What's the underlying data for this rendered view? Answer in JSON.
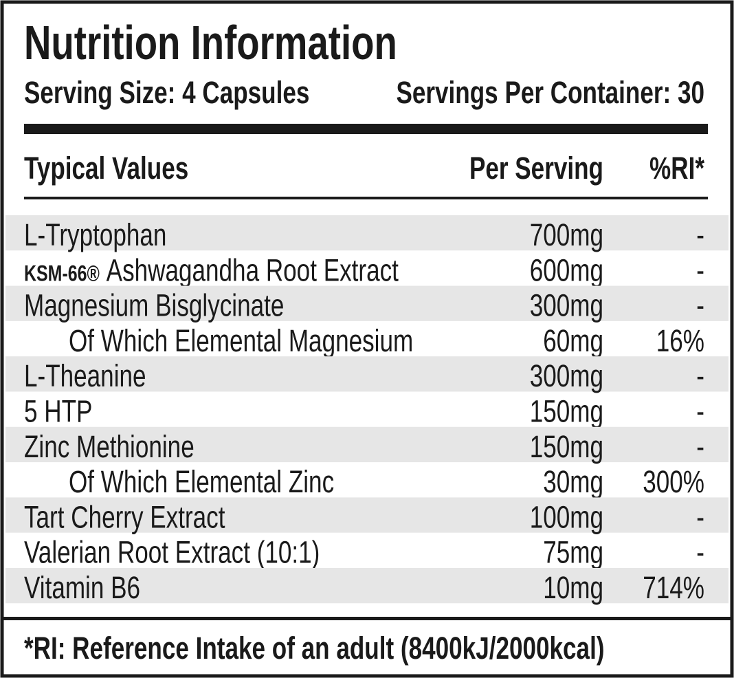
{
  "header": {
    "title": "Nutrition Information",
    "serving_size": "Serving Size: 4 Capsules",
    "servings_per_container": "Servings Per Container: 30"
  },
  "columns": [
    "Typical Values",
    "Per Serving",
    "%RI*"
  ],
  "rows": [
    {
      "name": "L-Tryptophan",
      "per_serving": "700mg",
      "ri": "-"
    },
    {
      "brand": "KSM-66®",
      "name": "Ashwagandha Root Extract",
      "per_serving": "600mg",
      "ri": "-"
    },
    {
      "name": "Magnesium Bisglycinate",
      "per_serving": "300mg",
      "ri": "-",
      "sub_rows": [
        {
          "name": "Of Which Elemental Magnesium",
          "per_serving": "60mg",
          "ri": "16%"
        }
      ]
    },
    {
      "name": "L-Theanine",
      "per_serving": "300mg",
      "ri": "-"
    },
    {
      "name": "5 HTP",
      "per_serving": "150mg",
      "ri": "-"
    },
    {
      "name": "Zinc Methionine",
      "per_serving": "150mg",
      "ri": "-",
      "sub_rows": [
        {
          "name": "Of Which Elemental Zinc",
          "per_serving": "30mg",
          "ri": "300%"
        }
      ]
    },
    {
      "name": "Tart Cherry Extract",
      "per_serving": "100mg",
      "ri": "-"
    },
    {
      "name": "Valerian Root Extract (10:1)",
      "per_serving": "75mg",
      "ri": "-"
    },
    {
      "name": "Vitamin B6",
      "per_serving": "10mg",
      "ri": "714%"
    }
  ],
  "footnote": "*RI: Reference Intake of an adult (8400kJ/2000kcal)"
}
